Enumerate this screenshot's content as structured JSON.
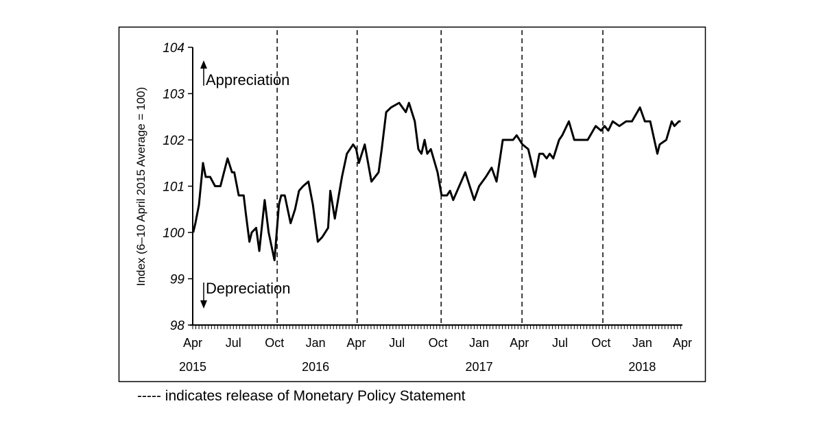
{
  "chart_data": {
    "type": "line",
    "title": "",
    "ylabel": "Index (6–10 April 2015 Average = 100)",
    "xlabel": "",
    "ylim": [
      98,
      104
    ],
    "yticks": [
      98,
      99,
      100,
      101,
      102,
      103,
      104
    ],
    "xlim": [
      "2015-04-01",
      "2018-04-01"
    ],
    "xticks": [
      {
        "date": "2015-04-01",
        "label": "Apr"
      },
      {
        "date": "2015-07-01",
        "label": "Jul"
      },
      {
        "date": "2015-10-01",
        "label": "Oct"
      },
      {
        "date": "2016-01-01",
        "label": "Jan"
      },
      {
        "date": "2016-04-01",
        "label": "Apr"
      },
      {
        "date": "2016-07-01",
        "label": "Jul"
      },
      {
        "date": "2016-10-01",
        "label": "Oct"
      },
      {
        "date": "2017-01-01",
        "label": "Jan"
      },
      {
        "date": "2017-04-01",
        "label": "Apr"
      },
      {
        "date": "2017-07-01",
        "label": "Jul"
      },
      {
        "date": "2017-10-01",
        "label": "Oct"
      },
      {
        "date": "2018-01-01",
        "label": "Jan"
      },
      {
        "date": "2018-04-01",
        "label": "Apr"
      }
    ],
    "year_labels": [
      {
        "date": "2015-04-01",
        "label": "2015"
      },
      {
        "date": "2016-01-01",
        "label": "2016"
      },
      {
        "date": "2017-01-01",
        "label": "2017"
      },
      {
        "date": "2018-01-01",
        "label": "2018"
      }
    ],
    "grid": false,
    "annotations": {
      "up": "Appreciation",
      "down": "Depreciation"
    },
    "mps_releases": [
      "2015-10-07",
      "2016-04-03",
      "2016-10-08",
      "2017-04-07",
      "2017-10-05"
    ],
    "legend_note": "----- indicates release of Monetary Policy Statement",
    "series": [
      {
        "color": "#000000",
        "points": [
          [
            "2015-04-02",
            100.0
          ],
          [
            "2015-04-07",
            100.2
          ],
          [
            "2015-04-15",
            100.6
          ],
          [
            "2015-04-24",
            101.5
          ],
          [
            "2015-04-30",
            101.2
          ],
          [
            "2015-05-10",
            101.2
          ],
          [
            "2015-05-21",
            101.0
          ],
          [
            "2015-06-02",
            101.0
          ],
          [
            "2015-06-18",
            101.6
          ],
          [
            "2015-06-28",
            101.3
          ],
          [
            "2015-07-03",
            101.3
          ],
          [
            "2015-07-13",
            100.8
          ],
          [
            "2015-07-24",
            100.8
          ],
          [
            "2015-07-29",
            100.4
          ],
          [
            "2015-08-06",
            99.8
          ],
          [
            "2015-08-11",
            100.0
          ],
          [
            "2015-08-21",
            100.1
          ],
          [
            "2015-08-28",
            99.6
          ],
          [
            "2015-09-09",
            100.7
          ],
          [
            "2015-09-18",
            100.0
          ],
          [
            "2015-10-01",
            99.4
          ],
          [
            "2015-10-11",
            100.6
          ],
          [
            "2015-10-16",
            100.8
          ],
          [
            "2015-10-24",
            100.8
          ],
          [
            "2015-11-06",
            100.2
          ],
          [
            "2015-11-16",
            100.5
          ],
          [
            "2015-11-25",
            100.9
          ],
          [
            "2015-12-04",
            101.0
          ],
          [
            "2015-12-16",
            101.1
          ],
          [
            "2015-12-26",
            100.6
          ],
          [
            "2016-01-06",
            99.8
          ],
          [
            "2016-01-16",
            99.9
          ],
          [
            "2016-01-29",
            100.1
          ],
          [
            "2016-02-03",
            100.9
          ],
          [
            "2016-02-13",
            100.3
          ],
          [
            "2016-02-29",
            101.2
          ],
          [
            "2016-03-11",
            101.7
          ],
          [
            "2016-03-25",
            101.9
          ],
          [
            "2016-04-01",
            101.8
          ],
          [
            "2016-04-07",
            101.5
          ],
          [
            "2016-04-20",
            101.9
          ],
          [
            "2016-05-05",
            101.1
          ],
          [
            "2016-05-21",
            101.3
          ],
          [
            "2016-05-28",
            101.8
          ],
          [
            "2016-06-07",
            102.6
          ],
          [
            "2016-06-18",
            102.7
          ],
          [
            "2016-07-06",
            102.8
          ],
          [
            "2016-07-21",
            102.6
          ],
          [
            "2016-07-28",
            102.8
          ],
          [
            "2016-08-10",
            102.4
          ],
          [
            "2016-08-18",
            101.8
          ],
          [
            "2016-08-25",
            101.7
          ],
          [
            "2016-09-01",
            102.0
          ],
          [
            "2016-09-07",
            101.7
          ],
          [
            "2016-09-15",
            101.8
          ],
          [
            "2016-09-30",
            101.3
          ],
          [
            "2016-10-09",
            100.8
          ],
          [
            "2016-10-21",
            100.8
          ],
          [
            "2016-10-28",
            100.9
          ],
          [
            "2016-11-04",
            100.7
          ],
          [
            "2016-12-01",
            101.3
          ],
          [
            "2016-12-21",
            100.7
          ],
          [
            "2017-01-01",
            101.0
          ],
          [
            "2017-01-16",
            101.2
          ],
          [
            "2017-01-29",
            101.4
          ],
          [
            "2017-02-09",
            101.1
          ],
          [
            "2017-02-23",
            102.0
          ],
          [
            "2017-03-03",
            102.0
          ],
          [
            "2017-03-18",
            102.0
          ],
          [
            "2017-03-26",
            102.1
          ],
          [
            "2017-04-08",
            101.9
          ],
          [
            "2017-04-21",
            101.8
          ],
          [
            "2017-05-06",
            101.2
          ],
          [
            "2017-05-16",
            101.7
          ],
          [
            "2017-05-24",
            101.7
          ],
          [
            "2017-06-01",
            101.6
          ],
          [
            "2017-06-08",
            101.7
          ],
          [
            "2017-06-16",
            101.6
          ],
          [
            "2017-06-29",
            102.0
          ],
          [
            "2017-07-06",
            102.1
          ],
          [
            "2017-07-21",
            102.4
          ],
          [
            "2017-08-02",
            102.0
          ],
          [
            "2017-09-01",
            102.0
          ],
          [
            "2017-09-19",
            102.3
          ],
          [
            "2017-10-01",
            102.2
          ],
          [
            "2017-10-09",
            102.3
          ],
          [
            "2017-10-17",
            102.2
          ],
          [
            "2017-10-27",
            102.4
          ],
          [
            "2017-11-11",
            102.3
          ],
          [
            "2017-11-26",
            102.4
          ],
          [
            "2017-12-09",
            102.4
          ],
          [
            "2017-12-27",
            102.7
          ],
          [
            "2018-01-07",
            102.4
          ],
          [
            "2018-01-19",
            102.4
          ],
          [
            "2018-02-04",
            101.7
          ],
          [
            "2018-02-09",
            101.9
          ],
          [
            "2018-02-24",
            102.0
          ],
          [
            "2018-03-08",
            102.4
          ],
          [
            "2018-03-14",
            102.3
          ],
          [
            "2018-03-24",
            102.4
          ],
          [
            "2018-03-28",
            102.4
          ]
        ]
      }
    ]
  }
}
